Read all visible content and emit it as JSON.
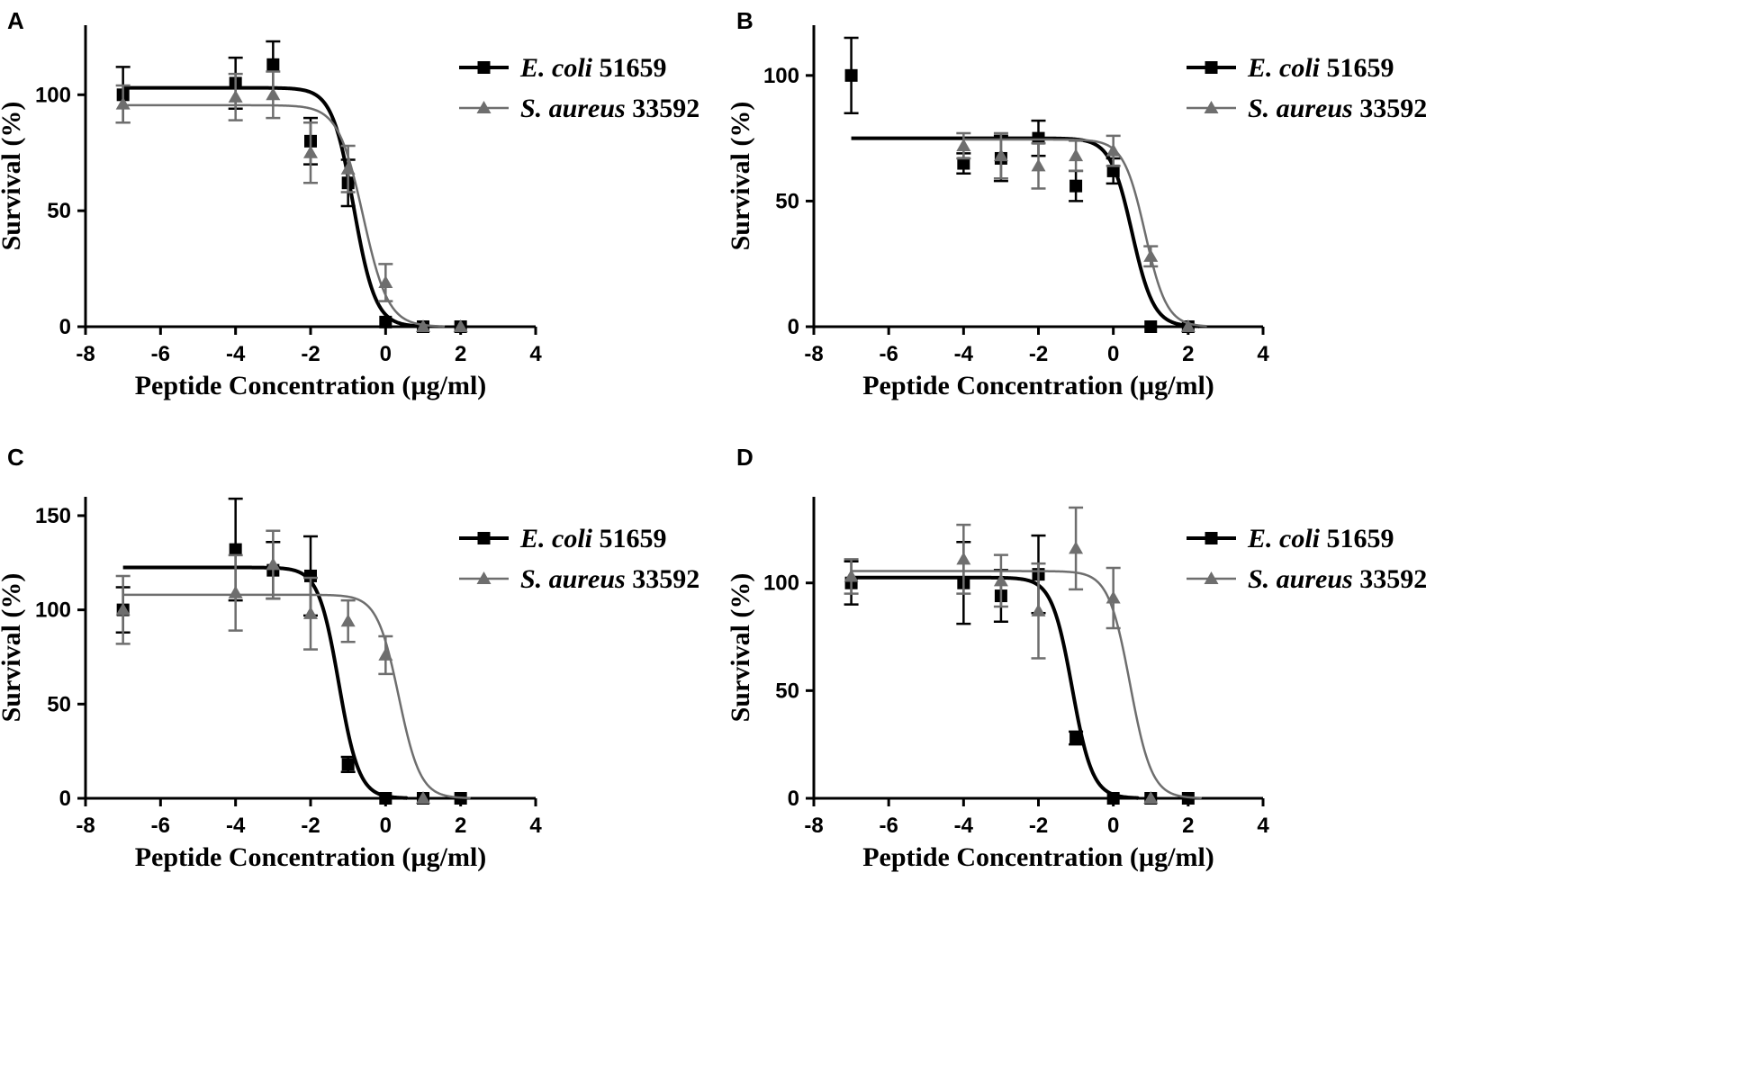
{
  "chart_data": [
    {
      "panel": "A",
      "type": "line",
      "xlabel": "Peptide Concentration (µg/ml)",
      "ylabel": "Survival (%)",
      "xlim": [
        -8,
        4
      ],
      "ylim": [
        0,
        130
      ],
      "xticks": [
        -8,
        -6,
        -4,
        -2,
        0,
        2,
        4
      ],
      "yticks": [
        0,
        50,
        100
      ],
      "legend_position": "top-right",
      "series": [
        {
          "name": "E. coli 51659",
          "legend_italic": "E. coli",
          "legend_rest": "51659",
          "color": "#000000",
          "marker": "square",
          "x": [
            -7,
            -4,
            -3,
            -2,
            -1,
            0,
            1,
            2
          ],
          "y": [
            100,
            105,
            113,
            80,
            62,
            2,
            0,
            0
          ],
          "err": [
            12,
            11,
            10,
            10,
            10,
            0,
            0,
            0
          ],
          "fit": {
            "top": 103,
            "bottom": 0,
            "logEC50": -0.85,
            "hill": 1.5,
            "xmin": -7
          }
        },
        {
          "name": "S. aureus 33592",
          "legend_italic": "S. aureus",
          "legend_rest": "33592",
          "color": "#6e6e6e",
          "marker": "triangle",
          "x": [
            -7,
            -4,
            -3,
            -2,
            -1,
            0,
            1,
            2
          ],
          "y": [
            96,
            99,
            100,
            75,
            68,
            19,
            0,
            0
          ],
          "err": [
            8,
            10,
            10,
            13,
            10,
            8,
            0,
            0
          ],
          "fit": {
            "top": 95.5,
            "bottom": 0,
            "logEC50": -0.6,
            "hill": 1.3,
            "xmin": -7
          }
        }
      ]
    },
    {
      "panel": "B",
      "type": "line",
      "xlabel": "Peptide Concentration (µg/ml)",
      "ylabel": "Survival (%)",
      "xlim": [
        -8,
        4
      ],
      "ylim": [
        0,
        120
      ],
      "xticks": [
        -8,
        -6,
        -4,
        -2,
        0,
        2,
        4
      ],
      "yticks": [
        0,
        50,
        100
      ],
      "legend_position": "top-right",
      "series": [
        {
          "name": "E. coli 51659",
          "legend_italic": "E. coli",
          "legend_rest": "51659",
          "color": "#000000",
          "marker": "square",
          "x": [
            -7,
            -4,
            -3,
            -2,
            -1,
            0,
            1,
            2
          ],
          "y": [
            100,
            65,
            67,
            75,
            56,
            62,
            0,
            0
          ],
          "err": [
            15,
            4,
            9,
            7,
            6,
            5,
            0,
            0
          ],
          "fit": {
            "top": 75,
            "bottom": 0,
            "logEC50": 0.5,
            "hill": 1.5,
            "xmin": -7
          }
        },
        {
          "name": "S. aureus 33592",
          "legend_italic": "S. aureus",
          "legend_rest": "33592",
          "color": "#6e6e6e",
          "marker": "triangle",
          "x": [
            -4,
            -3,
            -2,
            -1,
            0,
            1,
            2
          ],
          "y": [
            72,
            68,
            64,
            68,
            70,
            28,
            0
          ],
          "err": [
            5,
            9,
            9,
            6,
            6,
            4,
            0
          ],
          "fit": {
            "top": 74.5,
            "bottom": 0,
            "logEC50": 0.85,
            "hill": 1.5,
            "xmin": -4
          }
        }
      ]
    },
    {
      "panel": "C",
      "type": "line",
      "xlabel": "Peptide Concentration (µg/ml)",
      "ylabel": "Survival (%)",
      "xlim": [
        -8,
        4
      ],
      "ylim": [
        0,
        160
      ],
      "xticks": [
        -8,
        -6,
        -4,
        -2,
        0,
        2,
        4
      ],
      "yticks": [
        0,
        50,
        100,
        150
      ],
      "legend_position": "top-right",
      "series": [
        {
          "name": "E. coli 51659",
          "legend_italic": "E. coli",
          "legend_rest": "51659",
          "color": "#000000",
          "marker": "square",
          "x": [
            -7,
            -4,
            -3,
            -2,
            -1,
            0,
            1,
            2
          ],
          "y": [
            100,
            132,
            121,
            118,
            18,
            0,
            0,
            0
          ],
          "err": [
            12,
            27,
            15,
            21,
            4,
            0,
            0,
            0
          ],
          "fit": {
            "top": 122.5,
            "bottom": 0,
            "logEC50": -1.25,
            "hill": 1.6,
            "xmin": -7
          }
        },
        {
          "name": "S. aureus 33592",
          "legend_italic": "S. aureus",
          "legend_rest": "33592",
          "color": "#6e6e6e",
          "marker": "triangle",
          "x": [
            -7,
            -4,
            -3,
            -2,
            -1,
            0,
            1
          ],
          "y": [
            100,
            109,
            124,
            98,
            94,
            76,
            0
          ],
          "err": [
            18,
            20,
            18,
            19,
            11,
            10,
            0
          ],
          "fit": {
            "top": 108,
            "bottom": 0,
            "logEC50": 0.35,
            "hill": 1.5,
            "xmin": -7
          }
        }
      ]
    },
    {
      "panel": "D",
      "type": "line",
      "xlabel": "Peptide Concentration (µg/ml)",
      "ylabel": "Survival (%)",
      "xlim": [
        -8,
        4
      ],
      "ylim": [
        0,
        140
      ],
      "xticks": [
        -8,
        -6,
        -4,
        -2,
        0,
        2,
        4
      ],
      "yticks": [
        0,
        50,
        100
      ],
      "legend_position": "top-right",
      "series": [
        {
          "name": "E. coli 51659",
          "legend_italic": "E. coli",
          "legend_rest": "51659",
          "color": "#000000",
          "marker": "square",
          "x": [
            -7,
            -4,
            -3,
            -2,
            -1,
            0,
            1,
            2
          ],
          "y": [
            100,
            100,
            94,
            104,
            28,
            0,
            0,
            0
          ],
          "err": [
            10,
            19,
            12,
            18,
            3,
            0,
            0,
            0
          ],
          "fit": {
            "top": 102.5,
            "bottom": 0,
            "logEC50": -1.1,
            "hill": 1.6,
            "xmin": -7
          }
        },
        {
          "name": "S. aureus 33592",
          "legend_italic": "S. aureus",
          "legend_rest": "33592",
          "color": "#6e6e6e",
          "marker": "triangle",
          "x": [
            -7,
            -4,
            -3,
            -2,
            -1,
            0,
            1
          ],
          "y": [
            103,
            111,
            101,
            87,
            116,
            93,
            0
          ],
          "err": [
            8,
            16,
            12,
            22,
            19,
            14,
            0
          ],
          "fit": {
            "top": 105.5,
            "bottom": 0,
            "logEC50": 0.45,
            "hill": 1.5,
            "xmin": -7
          }
        }
      ]
    }
  ]
}
